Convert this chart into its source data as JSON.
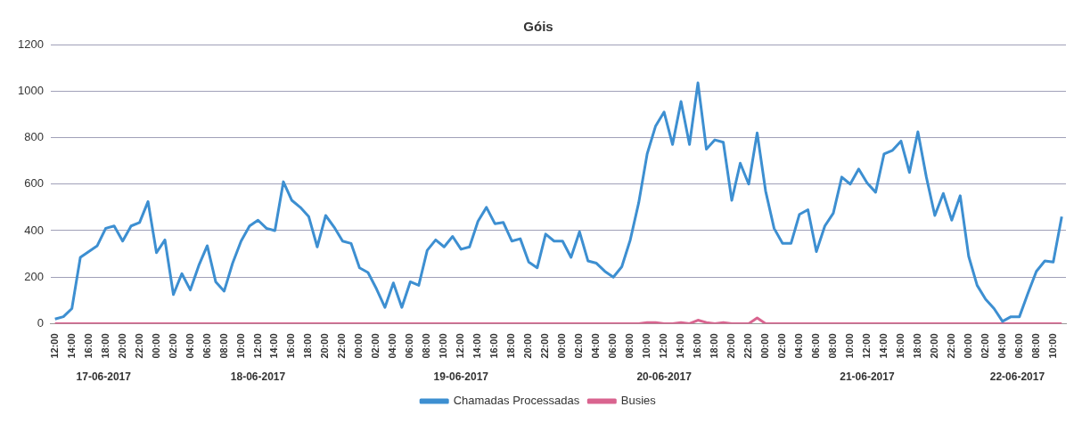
{
  "chart_data": {
    "type": "line",
    "title": "Góis",
    "x": [
      "2017-06-17T12:00",
      "2017-06-17T13:00",
      "2017-06-17T14:00",
      "2017-06-17T15:00",
      "2017-06-17T16:00",
      "2017-06-17T17:00",
      "2017-06-17T18:00",
      "2017-06-17T19:00",
      "2017-06-17T20:00",
      "2017-06-17T21:00",
      "2017-06-17T22:00",
      "2017-06-17T23:00",
      "2017-06-18T00:00",
      "2017-06-18T01:00",
      "2017-06-18T02:00",
      "2017-06-18T03:00",
      "2017-06-18T04:00",
      "2017-06-18T05:00",
      "2017-06-18T06:00",
      "2017-06-18T07:00",
      "2017-06-18T08:00",
      "2017-06-18T09:00",
      "2017-06-18T10:00",
      "2017-06-18T11:00",
      "2017-06-18T12:00",
      "2017-06-18T13:00",
      "2017-06-18T14:00",
      "2017-06-18T15:00",
      "2017-06-18T16:00",
      "2017-06-18T17:00",
      "2017-06-18T18:00",
      "2017-06-18T19:00",
      "2017-06-18T20:00",
      "2017-06-18T21:00",
      "2017-06-18T22:00",
      "2017-06-18T23:00",
      "2017-06-19T00:00",
      "2017-06-19T01:00",
      "2017-06-19T02:00",
      "2017-06-19T03:00",
      "2017-06-19T04:00",
      "2017-06-19T05:00",
      "2017-06-19T06:00",
      "2017-06-19T07:00",
      "2017-06-19T08:00",
      "2017-06-19T09:00",
      "2017-06-19T10:00",
      "2017-06-19T11:00",
      "2017-06-19T12:00",
      "2017-06-19T13:00",
      "2017-06-19T14:00",
      "2017-06-19T15:00",
      "2017-06-19T16:00",
      "2017-06-19T17:00",
      "2017-06-19T18:00",
      "2017-06-19T19:00",
      "2017-06-19T20:00",
      "2017-06-19T21:00",
      "2017-06-19T22:00",
      "2017-06-19T23:00",
      "2017-06-20T00:00",
      "2017-06-20T01:00",
      "2017-06-20T02:00",
      "2017-06-20T03:00",
      "2017-06-20T04:00",
      "2017-06-20T05:00",
      "2017-06-20T06:00",
      "2017-06-20T07:00",
      "2017-06-20T08:00",
      "2017-06-20T09:00",
      "2017-06-20T10:00",
      "2017-06-20T11:00",
      "2017-06-20T12:00",
      "2017-06-20T13:00",
      "2017-06-20T14:00",
      "2017-06-20T15:00",
      "2017-06-20T16:00",
      "2017-06-20T17:00",
      "2017-06-20T18:00",
      "2017-06-20T19:00",
      "2017-06-20T20:00",
      "2017-06-20T21:00",
      "2017-06-20T22:00",
      "2017-06-20T23:00",
      "2017-06-21T00:00",
      "2017-06-21T01:00",
      "2017-06-21T02:00",
      "2017-06-21T03:00",
      "2017-06-21T04:00",
      "2017-06-21T05:00",
      "2017-06-21T06:00",
      "2017-06-21T07:00",
      "2017-06-21T08:00",
      "2017-06-21T09:00",
      "2017-06-21T10:00",
      "2017-06-21T11:00",
      "2017-06-21T12:00",
      "2017-06-21T13:00",
      "2017-06-21T14:00",
      "2017-06-21T15:00",
      "2017-06-21T16:00",
      "2017-06-21T17:00",
      "2017-06-21T18:00",
      "2017-06-21T19:00",
      "2017-06-21T20:00",
      "2017-06-21T21:00",
      "2017-06-21T22:00",
      "2017-06-21T23:00",
      "2017-06-22T00:00",
      "2017-06-22T01:00",
      "2017-06-22T02:00",
      "2017-06-22T03:00",
      "2017-06-22T04:00",
      "2017-06-22T05:00",
      "2017-06-22T06:00",
      "2017-06-22T07:00",
      "2017-06-22T08:00",
      "2017-06-22T09:00",
      "2017-06-22T10:00",
      "2017-06-22T11:00"
    ],
    "series": [
      {
        "name": "Chamadas Processadas",
        "color": "#3d8fd1",
        "values": [
          20,
          30,
          65,
          285,
          310,
          335,
          410,
          420,
          355,
          420,
          435,
          525,
          305,
          360,
          125,
          215,
          145,
          250,
          335,
          180,
          140,
          260,
          355,
          420,
          445,
          410,
          400,
          610,
          530,
          500,
          460,
          330,
          465,
          415,
          355,
          345,
          240,
          220,
          150,
          70,
          175,
          70,
          180,
          165,
          315,
          360,
          330,
          375,
          320,
          330,
          440,
          500,
          430,
          435,
          355,
          365,
          265,
          240,
          385,
          355,
          355,
          285,
          395,
          270,
          260,
          225,
          200,
          245,
          360,
          520,
          730,
          850,
          910,
          770,
          955,
          770,
          1035,
          750,
          790,
          780,
          530,
          690,
          600,
          820,
          570,
          410,
          345,
          345,
          470,
          490,
          310,
          420,
          475,
          630,
          600,
          665,
          605,
          565,
          730,
          745,
          785,
          650,
          825,
          630,
          465,
          560,
          445,
          550,
          290,
          165,
          105,
          65,
          10,
          30,
          30,
          130,
          225,
          270,
          265,
          460
        ]
      },
      {
        "name": "Busies",
        "color": "#d9648f",
        "values": [
          0,
          0,
          0,
          0,
          0,
          0,
          0,
          0,
          0,
          0,
          0,
          0,
          0,
          0,
          0,
          0,
          0,
          0,
          0,
          0,
          0,
          0,
          0,
          0,
          0,
          0,
          0,
          0,
          0,
          0,
          0,
          0,
          0,
          0,
          0,
          0,
          0,
          0,
          0,
          0,
          0,
          0,
          0,
          0,
          0,
          0,
          0,
          0,
          0,
          0,
          0,
          0,
          0,
          0,
          0,
          0,
          0,
          0,
          0,
          0,
          0,
          0,
          0,
          0,
          0,
          0,
          0,
          0,
          0,
          0,
          5,
          5,
          0,
          0,
          5,
          0,
          15,
          5,
          0,
          5,
          0,
          0,
          0,
          25,
          0,
          0,
          0,
          0,
          0,
          0,
          0,
          0,
          0,
          0,
          0,
          0,
          0,
          0,
          0,
          0,
          0,
          0,
          0,
          0,
          0,
          0,
          0,
          0,
          0,
          0,
          0,
          0,
          0,
          0,
          0,
          0,
          0,
          0,
          0,
          0
        ]
      }
    ],
    "xlim": [
      "2017-06-17T11:30",
      "2017-06-22T11:30"
    ],
    "xticks": [
      {
        "value": "2017-06-17T12:00",
        "label": "12:00"
      },
      {
        "value": "2017-06-17T14:00",
        "label": "14:00"
      },
      {
        "value": "2017-06-17T16:00",
        "label": "16:00"
      },
      {
        "value": "2017-06-17T18:00",
        "label": "18:00"
      },
      {
        "value": "2017-06-17T20:00",
        "label": "20:00"
      },
      {
        "value": "2017-06-17T22:00",
        "label": "22:00"
      },
      {
        "value": "2017-06-18T00:00",
        "label": "00:00"
      },
      {
        "value": "2017-06-18T02:00",
        "label": "02:00"
      },
      {
        "value": "2017-06-18T04:00",
        "label": "04:00"
      },
      {
        "value": "2017-06-18T06:00",
        "label": "06:00"
      },
      {
        "value": "2017-06-18T08:00",
        "label": "08:00"
      },
      {
        "value": "2017-06-18T10:00",
        "label": "10:00"
      },
      {
        "value": "2017-06-18T12:00",
        "label": "12:00"
      },
      {
        "value": "2017-06-18T14:00",
        "label": "14:00"
      },
      {
        "value": "2017-06-18T16:00",
        "label": "16:00"
      },
      {
        "value": "2017-06-18T18:00",
        "label": "18:00"
      },
      {
        "value": "2017-06-18T20:00",
        "label": "20:00"
      },
      {
        "value": "2017-06-18T22:00",
        "label": "22:00"
      },
      {
        "value": "2017-06-19T00:00",
        "label": "00:00"
      },
      {
        "value": "2017-06-19T02:00",
        "label": "02:00"
      },
      {
        "value": "2017-06-19T04:00",
        "label": "04:00"
      },
      {
        "value": "2017-06-19T06:00",
        "label": "06:00"
      },
      {
        "value": "2017-06-19T08:00",
        "label": "08:00"
      },
      {
        "value": "2017-06-19T10:00",
        "label": "10:00"
      },
      {
        "value": "2017-06-19T12:00",
        "label": "12:00"
      },
      {
        "value": "2017-06-19T14:00",
        "label": "14:00"
      },
      {
        "value": "2017-06-19T16:00",
        "label": "16:00"
      },
      {
        "value": "2017-06-19T18:00",
        "label": "18:00"
      },
      {
        "value": "2017-06-19T20:00",
        "label": "20:00"
      },
      {
        "value": "2017-06-19T22:00",
        "label": "22:00"
      },
      {
        "value": "2017-06-20T00:00",
        "label": "00:00"
      },
      {
        "value": "2017-06-20T02:00",
        "label": "02:00"
      },
      {
        "value": "2017-06-20T04:00",
        "label": "04:00"
      },
      {
        "value": "2017-06-20T06:00",
        "label": "06:00"
      },
      {
        "value": "2017-06-20T08:00",
        "label": "08:00"
      },
      {
        "value": "2017-06-20T10:00",
        "label": "10:00"
      },
      {
        "value": "2017-06-20T12:00",
        "label": "12:00"
      },
      {
        "value": "2017-06-20T14:00",
        "label": "14:00"
      },
      {
        "value": "2017-06-20T16:00",
        "label": "16:00"
      },
      {
        "value": "2017-06-20T18:00",
        "label": "18:00"
      },
      {
        "value": "2017-06-20T20:00",
        "label": "20:00"
      },
      {
        "value": "2017-06-20T22:00",
        "label": "22:00"
      },
      {
        "value": "2017-06-21T00:00",
        "label": "00:00"
      },
      {
        "value": "2017-06-21T02:00",
        "label": "02:00"
      },
      {
        "value": "2017-06-21T04:00",
        "label": "04:00"
      },
      {
        "value": "2017-06-21T06:00",
        "label": "06:00"
      },
      {
        "value": "2017-06-21T08:00",
        "label": "08:00"
      },
      {
        "value": "2017-06-21T10:00",
        "label": "10:00"
      },
      {
        "value": "2017-06-21T12:00",
        "label": "12:00"
      },
      {
        "value": "2017-06-21T14:00",
        "label": "14:00"
      },
      {
        "value": "2017-06-21T16:00",
        "label": "16:00"
      },
      {
        "value": "2017-06-21T18:00",
        "label": "18:00"
      },
      {
        "value": "2017-06-21T20:00",
        "label": "20:00"
      },
      {
        "value": "2017-06-21T22:00",
        "label": "22:00"
      },
      {
        "value": "2017-06-22T00:00",
        "label": "00:00"
      },
      {
        "value": "2017-06-22T02:00",
        "label": "02:00"
      },
      {
        "value": "2017-06-22T04:00",
        "label": "04:00"
      },
      {
        "value": "2017-06-22T06:00",
        "label": "06:00"
      },
      {
        "value": "2017-06-22T08:00",
        "label": "08:00"
      },
      {
        "value": "2017-06-22T10:00",
        "label": "10:00"
      }
    ],
    "x2lim": [
      "2017-06-17T11:30",
      "2017-06-22T11:30"
    ],
    "x2ticks": [
      {
        "value": "2017-06-17T17:45",
        "label": "17-06-2017"
      },
      {
        "value": "2017-06-18T12:00",
        "label": "18-06-2017"
      },
      {
        "value": "2017-06-19T12:00",
        "label": "19-06-2017"
      },
      {
        "value": "2017-06-20T12:00",
        "label": "20-06-2017"
      },
      {
        "value": "2017-06-21T12:00",
        "label": "21-06-2017"
      },
      {
        "value": "2017-06-22T05:45",
        "label": "22-06-2017"
      }
    ],
    "ylim": [
      0,
      1200
    ],
    "yticks": [
      0,
      200,
      400,
      600,
      800,
      1000,
      1200
    ],
    "grid": "y",
    "legend": "bottom",
    "marker": "none",
    "line_style": "solid"
  }
}
